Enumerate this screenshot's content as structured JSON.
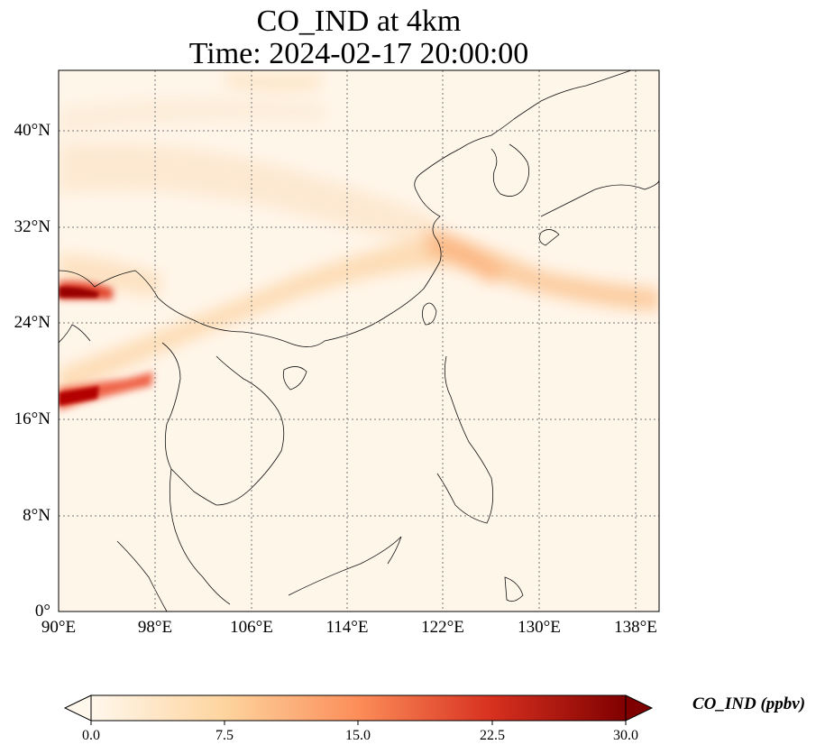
{
  "title": {
    "line1": "CO_IND at 4km",
    "line2": "Time: 2024-02-17 20:00:00"
  },
  "map": {
    "lon_ticks": [
      "90°E",
      "98°E",
      "106°E",
      "114°E",
      "122°E",
      "130°E",
      "138°E"
    ],
    "lat_ticks": [
      "40°N",
      "32°N",
      "24°N",
      "16°N",
      "8°N",
      "0°"
    ],
    "extent": {
      "lon": [
        90,
        140
      ],
      "lat": [
        0,
        45
      ]
    },
    "gridlines": true
  },
  "colorbar": {
    "label": "CO_IND (ppbv)",
    "ticks": [
      "0.0",
      "7.5",
      "15.0",
      "22.5",
      "30.0"
    ],
    "range": [
      0,
      30
    ],
    "cmap": "OrRd",
    "colors": [
      "#fff7ec",
      "#fdd49e",
      "#fc8d59",
      "#d7301f",
      "#7f0000"
    ],
    "extend": "both"
  }
}
